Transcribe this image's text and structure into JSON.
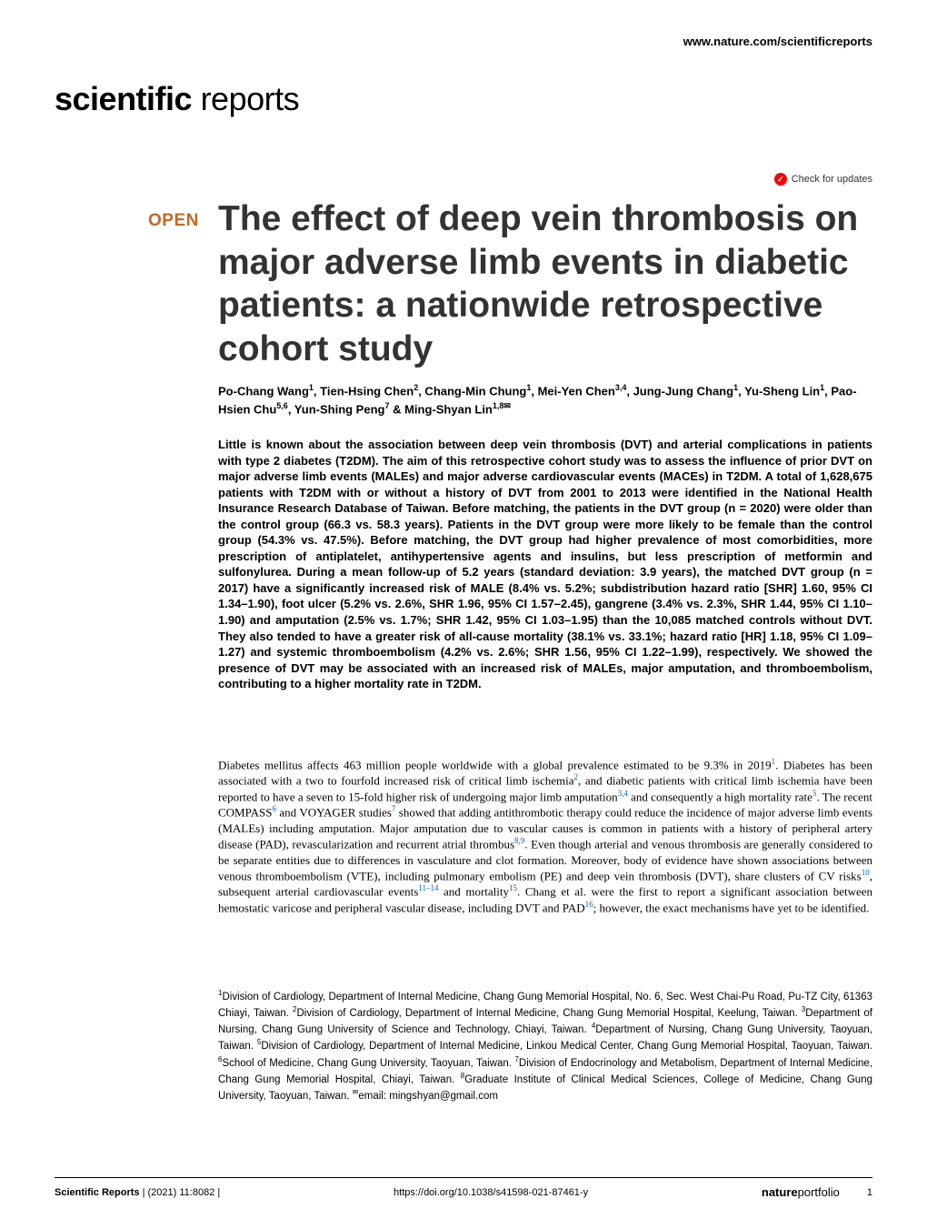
{
  "header": {
    "url": "www.nature.com/scientificreports",
    "journal_bold": "scientific",
    "journal_light": " reports",
    "check_updates": "Check for updates"
  },
  "article": {
    "open_badge": "OPEN",
    "title": "The effect of deep vein thrombosis on major adverse limb events in diabetic patients: a nationwide retrospective cohort study",
    "authors_html": "Po-Chang Wang<sup>1</sup>, Tien-Hsing Chen<sup>2</sup>, Chang-Min Chung<sup>1</sup>, Mei-Yen Chen<sup>3,4</sup>, Jung-Jung Chang<sup>1</sup>, Yu-Sheng Lin<sup>1</sup>, Pao-Hsien Chu<sup>5,6</sup>, Yun-Shing Peng<sup>7</sup> & Ming-Shyan Lin<sup>1,8✉</sup>",
    "abstract": "Little is known about the association between deep vein thrombosis (DVT) and arterial complications in patients with type 2 diabetes (T2DM). The aim of this retrospective cohort study was to assess the influence of prior DVT on major adverse limb events (MALEs) and major adverse cardiovascular events (MACEs) in T2DM. A total of 1,628,675 patients with T2DM with or without a history of DVT from 2001 to 2013 were identified in the National Health Insurance Research Database of Taiwan. Before matching, the patients in the DVT group (n = 2020) were older than the control group (66.3 vs. 58.3 years). Patients in the DVT group were more likely to be female than the control group (54.3% vs. 47.5%). Before matching, the DVT group had higher prevalence of most comorbidities, more prescription of antiplatelet, antihypertensive agents and insulins, but less prescription of metformin and sulfonylurea. During a mean follow-up of 5.2 years (standard deviation: 3.9 years), the matched DVT group (n = 2017) have a significantly increased risk of MALE (8.4% vs. 5.2%; subdistribution hazard ratio [SHR] 1.60, 95% CI 1.34–1.90), foot ulcer (5.2% vs. 2.6%, SHR 1.96, 95% CI 1.57–2.45), gangrene (3.4% vs. 2.3%, SHR 1.44, 95% CI 1.10–1.90) and amputation (2.5% vs. 1.7%; SHR 1.42, 95% CI 1.03–1.95) than the 10,085 matched controls without DVT. They also tended to have a greater risk of all-cause mortality (38.1% vs. 33.1%; hazard ratio [HR] 1.18, 95% CI 1.09–1.27) and systemic thromboembolism (4.2% vs. 2.6%; SHR 1.56, 95% CI 1.22–1.99), respectively. We showed the presence of DVT may be associated with an increased risk of MALEs, major amputation, and thromboembolism, contributing to a higher mortality rate in T2DM.",
    "body_html": "Diabetes mellitus affects 463 million people worldwide with a global prevalence estimated to be 9.3% in 2019<sup>1</sup>. Diabetes has been associated with a two to fourfold increased risk of critical limb ischemia<sup>2</sup>, and diabetic patients with critical limb ischemia have been reported to have a seven to 15-fold higher risk of undergoing major limb amputation<sup>3,4</sup> and consequently a high mortality rate<sup>5</sup>. The recent COMPASS<sup>6</sup> and VOYAGER studies<sup>7</sup> showed that adding antithrombotic therapy could reduce the incidence of major adverse limb events (MALEs) including amputation. Major amputation due to vascular causes is common in patients with a history of peripheral artery disease (PAD), revascularization and recurrent atrial thrombus<sup>8,9</sup>. Even though arterial and venous thrombosis are generally considered to be separate entities due to differences in vasculature and clot formation. Moreover, body of evidence have shown associations between venous thromboembolism (VTE), including pulmonary embolism (PE) and deep vein thrombosis (DVT), share clusters of CV risks<sup>10</sup>, subsequent arterial cardiovascular events<sup>11–14</sup> and mortality<sup>15</sup>. Chang et al. were the first to report a significant association between hemostatic varicose and peripheral vascular disease, including DVT and PAD<sup>16</sup>; however, the exact mechanisms have yet to be identified.",
    "affiliations_html": "<sup>1</sup>Division of Cardiology, Department of Internal Medicine, Chang Gung Memorial Hospital, No. 6, Sec. West Chai-Pu Road, Pu-TZ City, 61363 Chiayi, Taiwan. <sup>2</sup>Division of Cardiology, Department of Internal Medicine, Chang Gung Memorial Hospital, Keelung, Taiwan. <sup>3</sup>Department of Nursing, Chang Gung University of Science and Technology, Chiayi, Taiwan. <sup>4</sup>Department of Nursing, Chang Gung University, Taoyuan, Taiwan. <sup>5</sup>Division of Cardiology, Department of Internal Medicine, Linkou Medical Center, Chang Gung Memorial Hospital, Taoyuan, Taiwan. <sup>6</sup>School of Medicine, Chang Gung University, Taoyuan, Taiwan. <sup>7</sup>Division of Endocrinology and Metabolism, Department of Internal Medicine, Chang Gung Memorial Hospital, Chiayi, Taiwan. <sup>8</sup>Graduate Institute of Clinical Medical Sciences, College of Medicine, Chang Gung University, Taoyuan, Taiwan. <sup>✉</sup>email: mingshyan@gmail.com"
  },
  "footer": {
    "journal": "Scientific Reports",
    "citation": "(2021) 11:8082",
    "doi": "https://doi.org/10.1038/s41598-021-87461-y",
    "publisher_nat": "nature",
    "publisher_port": "portfolio",
    "page": "1"
  },
  "colors": {
    "open_badge": "#c36922",
    "title": "#333333",
    "ref_link": "#0066cc",
    "check_icon_bg": "#ff0000",
    "text": "#000000",
    "background": "#ffffff"
  },
  "typography": {
    "title_fontsize": 39,
    "abstract_fontsize": 13,
    "body_fontsize": 13,
    "affil_fontsize": 11.5,
    "footer_fontsize": 11
  }
}
